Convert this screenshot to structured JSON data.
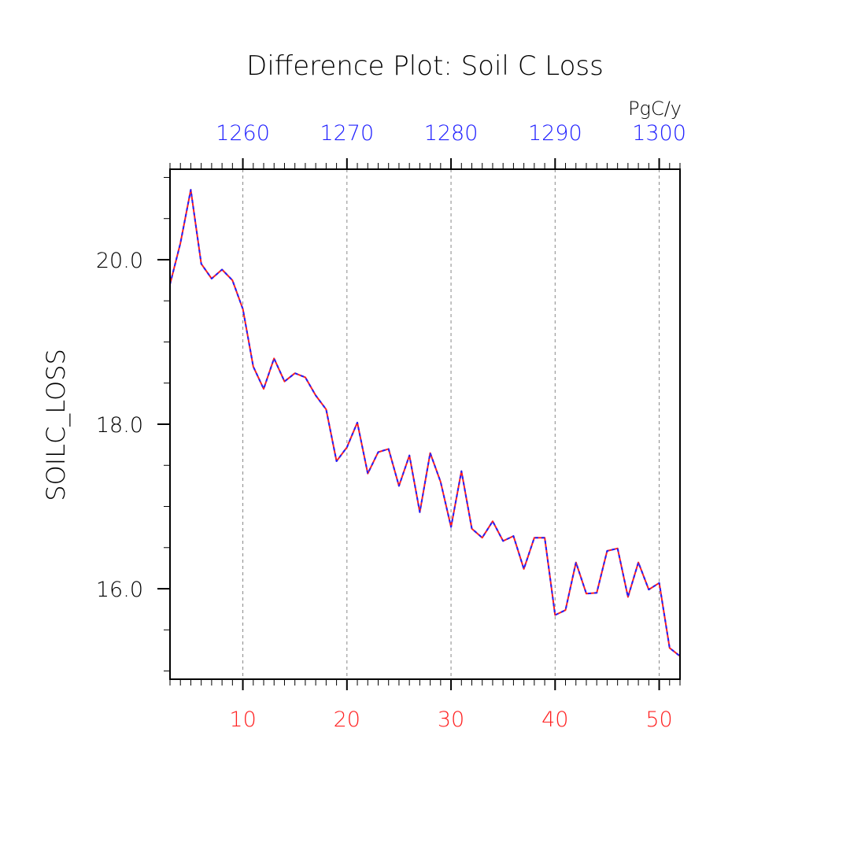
{
  "chart_data": {
    "type": "line",
    "title": "Difference Plot: Soil C Loss",
    "units": "PgC/y",
    "ylabel": "SOILC_LOSS",
    "xlabel": "",
    "xlim": [
      3,
      52
    ],
    "ylim": [
      14.9,
      21.1
    ],
    "grid": "vertical dashed",
    "bottom_axis": {
      "color": "#ff2020",
      "ticks": [
        10,
        20,
        30,
        40,
        50
      ],
      "labels": [
        "10",
        "20",
        "30",
        "40",
        "50"
      ]
    },
    "top_axis": {
      "color": "#2020ff",
      "ticks": [
        10,
        20,
        30,
        40,
        50
      ],
      "labels": [
        "1260",
        "1270",
        "1280",
        "1290",
        "1300"
      ]
    },
    "y_axis": {
      "ticks": [
        16,
        18,
        20
      ],
      "labels": [
        "16.0",
        "18.0",
        "20.0"
      ],
      "minor_ticks": [
        15.0,
        15.5,
        16.5,
        17.0,
        17.5,
        18.5,
        19.0,
        19.5,
        20.5,
        21.0
      ]
    },
    "series": [
      {
        "color": "#ff2020",
        "style": "solid",
        "x": [
          3,
          4,
          5,
          6,
          7,
          8,
          9,
          10,
          11,
          12,
          13,
          14,
          15,
          16,
          17,
          18,
          19,
          20,
          21,
          22,
          23,
          24,
          25,
          26,
          27,
          28,
          29,
          30,
          31,
          32,
          33,
          34,
          35,
          36,
          37,
          38,
          39,
          40,
          41,
          42,
          43,
          44,
          45,
          46,
          47,
          48,
          49,
          50,
          51,
          52
        ],
        "y": [
          19.7,
          20.2,
          20.85,
          19.95,
          19.77,
          19.88,
          19.75,
          19.4,
          18.7,
          18.43,
          18.8,
          18.52,
          18.62,
          18.57,
          18.35,
          18.18,
          17.55,
          17.72,
          18.02,
          17.4,
          17.66,
          17.7,
          17.25,
          17.62,
          16.93,
          17.65,
          17.3,
          16.75,
          17.43,
          16.73,
          16.62,
          16.82,
          16.58,
          16.64,
          16.24,
          16.62,
          16.62,
          15.68,
          15.74,
          16.32,
          15.94,
          15.95,
          16.46,
          16.49,
          15.9,
          16.32,
          15.99,
          16.07,
          15.28,
          15.18
        ]
      },
      {
        "color": "#2020ff",
        "style": "dashed",
        "x": [
          3,
          4,
          5,
          6,
          7,
          8,
          9,
          10,
          11,
          12,
          13,
          14,
          15,
          16,
          17,
          18,
          19,
          20,
          21,
          22,
          23,
          24,
          25,
          26,
          27,
          28,
          29,
          30,
          31,
          32,
          33,
          34,
          35,
          36,
          37,
          38,
          39,
          40,
          41,
          42,
          43,
          44,
          45,
          46,
          47,
          48,
          49,
          50,
          51,
          52
        ],
        "y": [
          19.7,
          20.2,
          20.85,
          19.95,
          19.77,
          19.88,
          19.75,
          19.4,
          18.7,
          18.43,
          18.8,
          18.52,
          18.62,
          18.57,
          18.35,
          18.18,
          17.55,
          17.72,
          18.02,
          17.4,
          17.66,
          17.7,
          17.25,
          17.62,
          16.93,
          17.65,
          17.3,
          16.75,
          17.43,
          16.73,
          16.62,
          16.82,
          16.58,
          16.64,
          16.24,
          16.62,
          16.62,
          15.68,
          15.74,
          16.32,
          15.94,
          15.95,
          16.46,
          16.49,
          15.9,
          16.32,
          15.99,
          16.07,
          15.28,
          15.18
        ]
      }
    ]
  }
}
